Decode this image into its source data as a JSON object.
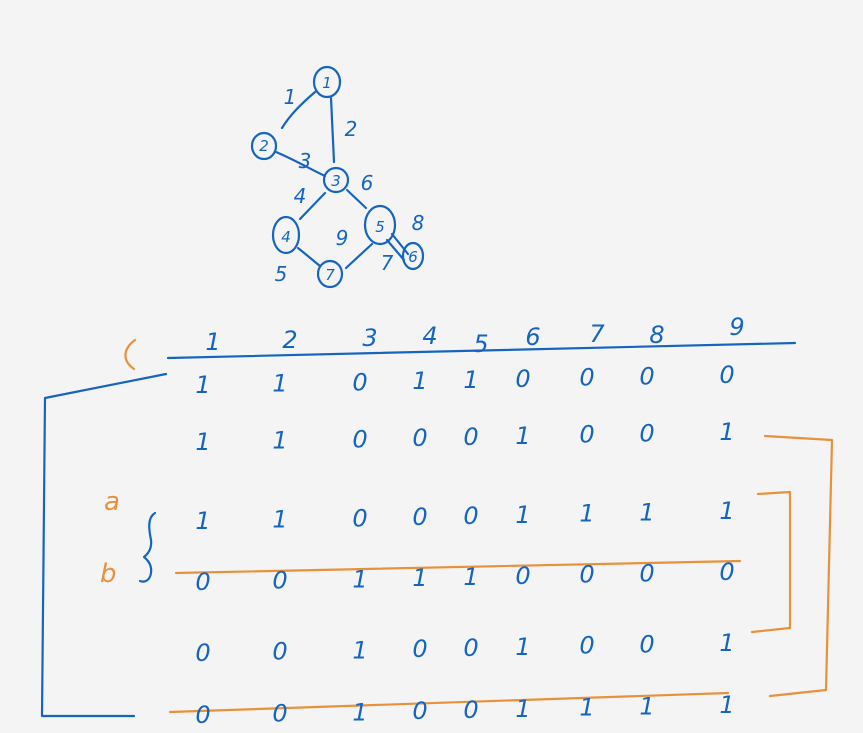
{
  "colors": {
    "background": "#f4f4f4",
    "ink_blue": "#1565c0",
    "ink_orange": "#e8913a"
  },
  "graph": {
    "nodes": [
      {
        "id": "node-1",
        "label": "1"
      },
      {
        "id": "node-2",
        "label": "2"
      },
      {
        "id": "node-3",
        "label": "3"
      },
      {
        "id": "node-4",
        "label": "4"
      },
      {
        "id": "node-5",
        "label": "5"
      },
      {
        "id": "node-6",
        "label": "6"
      },
      {
        "id": "node-7",
        "label": "7"
      }
    ],
    "edge_labels": [
      "1",
      "2",
      "3",
      "4",
      "5",
      "6",
      "7",
      "8",
      "9"
    ]
  },
  "matrix": {
    "open_bracket_label": "(",
    "column_headers": [
      "1",
      "2",
      "3",
      "4",
      "5",
      "6",
      "7",
      "8",
      "9"
    ],
    "rows": [
      [
        "1",
        "1",
        "0",
        "1",
        "1",
        "0",
        "0",
        "0",
        "0"
      ],
      [
        "1",
        "1",
        "0",
        "0",
        "0",
        "1",
        "0",
        "0",
        "1"
      ],
      [
        "1",
        "1",
        "0",
        "0",
        "0",
        "1",
        "1",
        "1",
        "1"
      ],
      [
        "0",
        "0",
        "1",
        "1",
        "1",
        "0",
        "0",
        "0",
        "0"
      ],
      [
        "0",
        "0",
        "1",
        "0",
        "0",
        "1",
        "0",
        "0",
        "1"
      ],
      [
        "0",
        "0",
        "1",
        "0",
        "0",
        "1",
        "1",
        "1",
        "1"
      ]
    ],
    "row_annotations": {
      "a": "a",
      "b": "b"
    }
  }
}
